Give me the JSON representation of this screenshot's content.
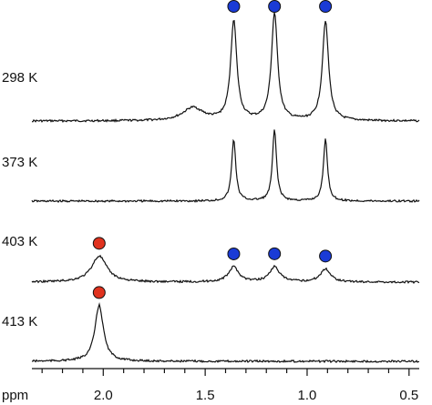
{
  "chart_data": {
    "type": "line",
    "title": "",
    "xlabel": "ppm",
    "ylabel": "",
    "xlim": [
      2.35,
      0.45
    ],
    "x_reversed": true,
    "x_ticks": [
      "2.0",
      "1.5",
      "1.0",
      "0.5"
    ],
    "x_tick_values": [
      2.0,
      1.5,
      1.0,
      0.5
    ],
    "grid": false,
    "legend": "none",
    "marker_colors": {
      "blue": "#1a3bd6",
      "red": "#e0321e"
    },
    "spectra": [
      {
        "label": "298 K",
        "peaks": [
          {
            "ppm": 1.36,
            "height": 1.0,
            "width": 0.018
          },
          {
            "ppm": 1.16,
            "height": 1.07,
            "width": 0.018
          },
          {
            "ppm": 0.91,
            "height": 1.0,
            "width": 0.018
          },
          {
            "ppm": 1.56,
            "height": 0.13,
            "width": 0.06
          }
        ],
        "markers": [
          {
            "ppm": 1.36,
            "color": "blue"
          },
          {
            "ppm": 1.16,
            "color": "blue"
          },
          {
            "ppm": 0.91,
            "color": "blue"
          }
        ]
      },
      {
        "label": "373 K",
        "peaks": [
          {
            "ppm": 1.36,
            "height": 0.62,
            "width": 0.012
          },
          {
            "ppm": 1.16,
            "height": 0.71,
            "width": 0.012
          },
          {
            "ppm": 0.91,
            "height": 0.62,
            "width": 0.012
          }
        ],
        "markers": []
      },
      {
        "label": "403 K",
        "peaks": [
          {
            "ppm": 2.02,
            "height": 0.26,
            "width": 0.045
          },
          {
            "ppm": 1.36,
            "height": 0.15,
            "width": 0.03
          },
          {
            "ppm": 1.16,
            "height": 0.15,
            "width": 0.03
          },
          {
            "ppm": 0.91,
            "height": 0.13,
            "width": 0.03
          }
        ],
        "markers": [
          {
            "ppm": 2.02,
            "color": "red"
          },
          {
            "ppm": 1.36,
            "color": "blue"
          },
          {
            "ppm": 1.16,
            "color": "blue"
          },
          {
            "ppm": 0.91,
            "color": "blue"
          }
        ]
      },
      {
        "label": "413 K",
        "peaks": [
          {
            "ppm": 2.02,
            "height": 0.56,
            "width": 0.025
          }
        ],
        "markers": [
          {
            "ppm": 2.02,
            "color": "red"
          }
        ]
      }
    ]
  }
}
